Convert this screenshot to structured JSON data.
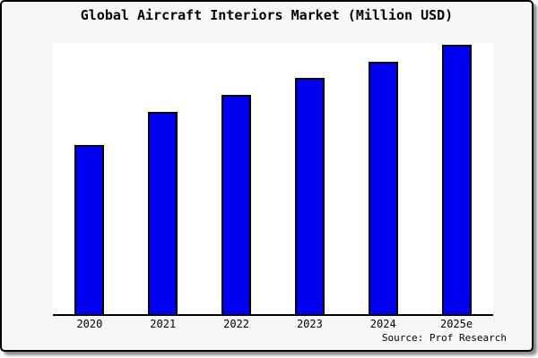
{
  "figure": {
    "title": "Global Aircraft Interiors Market (Million USD)",
    "source_note": "Source: Prof Research",
    "background": "#F7F7F7",
    "border_color": "#000000"
  },
  "chart_data": {
    "type": "bar",
    "title": "Global Aircraft Interiors Market (Million USD)",
    "categories": [
      "2020",
      "2021",
      "2022",
      "2023",
      "2024",
      "2025e"
    ],
    "values": [
      62.4,
      74.6,
      80.9,
      87.1,
      93.1,
      99.3
    ],
    "value_scale_note": "No y-axis or data labels shown; values estimated as percent of plot height (2025e tallest)",
    "xlabel": "",
    "ylabel": "",
    "ylim": [
      0,
      100
    ],
    "grid": false,
    "legend": false,
    "bar_color": "#0000F0",
    "bar_outline_color": "#000000",
    "plot_background": "#FFFFFF",
    "axis_line_color": "#000000",
    "source_note": "Source: Prof Research"
  }
}
